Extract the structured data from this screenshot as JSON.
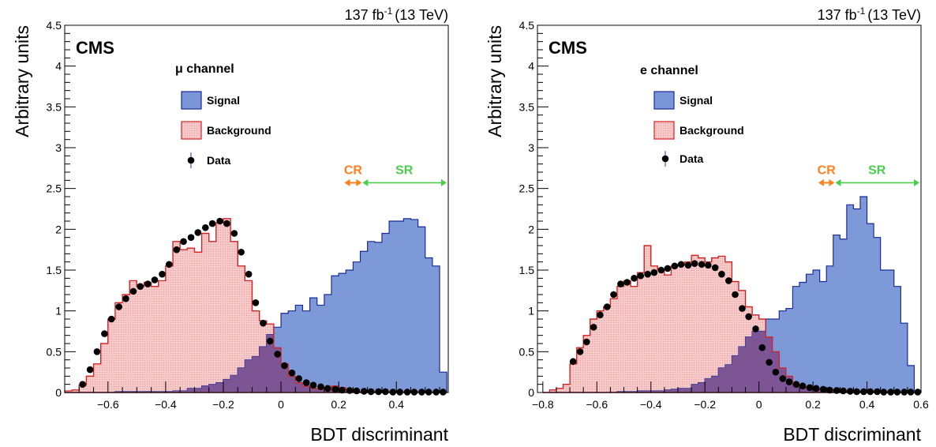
{
  "colors": {
    "signal_fill": "#7a96d6",
    "signal_line": "#1a2a9a",
    "background_fill": "#f6c8c8",
    "background_line": "#d42020",
    "overlap_fill": "#7d5494",
    "data": "#000000",
    "cr": "#ff7f1a",
    "sr": "#4ccc4c"
  },
  "chart_data": [
    {
      "type": "histogram",
      "experiment": "CMS",
      "channel": "μ channel",
      "lumi": "137 fb",
      "lumi_sup": "-1",
      "energy": "(13 TeV)",
      "xlabel": "BDT discriminant",
      "ylabel": "Arbitrary units",
      "xlim": [
        -0.75,
        0.58
      ],
      "ylim": [
        0,
        4.5
      ],
      "xticks": [
        -0.6,
        -0.4,
        -0.2,
        0,
        0.2,
        0.4
      ],
      "xticklabels": [
        "−0.6",
        "−0.4",
        "−0.2",
        "0",
        "0.2",
        "0.4"
      ],
      "yticks": [
        0,
        0.5,
        1,
        1.5,
        2,
        2.5,
        3,
        3.5,
        4,
        4.5
      ],
      "yticklabels": [
        "0",
        "0.5",
        "1",
        "1.5",
        "2",
        "2.5",
        "3",
        "3.5",
        "4",
        "4.5"
      ],
      "legend": [
        "Signal",
        "Background",
        "Data"
      ],
      "regions": {
        "CR": {
          "label": "CR",
          "range": [
            0.22,
            0.28
          ],
          "y": 2.57
        },
        "SR": {
          "label": "SR",
          "range": [
            0.28,
            0.58
          ],
          "y": 2.57
        }
      },
      "bin_edges": [
        -0.75,
        -0.725,
        -0.7,
        -0.675,
        -0.65,
        -0.625,
        -0.6,
        -0.575,
        -0.55,
        -0.525,
        -0.5,
        -0.475,
        -0.45,
        -0.425,
        -0.4,
        -0.375,
        -0.35,
        -0.325,
        -0.3,
        -0.275,
        -0.25,
        -0.225,
        -0.2,
        -0.175,
        -0.15,
        -0.125,
        -0.1,
        -0.075,
        -0.05,
        -0.025,
        0,
        0.025,
        0.05,
        0.075,
        0.1,
        0.125,
        0.15,
        0.175,
        0.2,
        0.225,
        0.25,
        0.275,
        0.3,
        0.325,
        0.35,
        0.375,
        0.4,
        0.425,
        0.45,
        0.475,
        0.5,
        0.525,
        0.55,
        0.575
      ],
      "background": [
        0.02,
        0.03,
        0.09,
        0.2,
        0.35,
        0.6,
        0.9,
        1.1,
        1.2,
        1.37,
        1.3,
        1.35,
        1.3,
        1.37,
        1.55,
        1.85,
        1.75,
        1.77,
        1.72,
        1.95,
        1.85,
        2.08,
        2.13,
        1.85,
        1.55,
        1.37,
        1.0,
        0.88,
        0.84,
        0.55,
        0.35,
        0.2,
        0.12,
        0.08,
        0.05,
        0.04,
        0.03,
        0.08,
        0.06,
        0.02,
        0.01,
        0.01,
        0.01,
        0.01,
        0.01,
        0.01,
        0.01,
        0.01,
        0.01,
        0.0,
        0.0,
        0.0,
        0.0
      ],
      "signal": [
        0.0,
        0.0,
        0.0,
        0.0,
        0.0,
        0.0,
        0.0,
        0.01,
        0.01,
        0.01,
        0.01,
        0.01,
        0.01,
        0.01,
        0.01,
        0.02,
        0.02,
        0.05,
        0.05,
        0.08,
        0.1,
        0.12,
        0.16,
        0.21,
        0.3,
        0.4,
        0.44,
        0.56,
        0.71,
        0.8,
        0.97,
        1.0,
        1.07,
        1.0,
        1.16,
        1.07,
        1.2,
        1.43,
        1.46,
        1.5,
        1.6,
        1.73,
        1.85,
        1.84,
        1.95,
        2.1,
        2.1,
        2.13,
        2.12,
        2.03,
        1.65,
        1.55,
        0.25
      ],
      "data_x": [
        -0.688,
        -0.662,
        -0.638,
        -0.612,
        -0.588,
        -0.562,
        -0.538,
        -0.512,
        -0.488,
        -0.462,
        -0.438,
        -0.412,
        -0.388,
        -0.362,
        -0.338,
        -0.312,
        -0.288,
        -0.262,
        -0.238,
        -0.212,
        -0.188,
        -0.162,
        -0.138,
        -0.112,
        -0.088,
        -0.062,
        -0.038,
        -0.012,
        0.012,
        0.038,
        0.062,
        0.088,
        0.112,
        0.138,
        0.162,
        0.188,
        0.212,
        0.238,
        0.262,
        0.288,
        0.312,
        0.338,
        0.362,
        0.388,
        0.412,
        0.438,
        0.462,
        0.488,
        0.512,
        0.538,
        0.562
      ],
      "data_y": [
        0.1,
        0.28,
        0.5,
        0.72,
        0.9,
        1.05,
        1.15,
        1.24,
        1.3,
        1.33,
        1.38,
        1.45,
        1.57,
        1.75,
        1.85,
        1.9,
        1.96,
        2.02,
        2.07,
        2.1,
        2.07,
        1.95,
        1.72,
        1.45,
        1.1,
        0.85,
        0.63,
        0.47,
        0.33,
        0.24,
        0.17,
        0.12,
        0.09,
        0.07,
        0.05,
        0.04,
        0.03,
        0.025,
        0.02,
        0.015,
        0.01,
        0.01,
        0.01,
        0.005,
        0.005,
        0.005,
        0.005,
        0.005,
        0.005,
        0.005,
        0.005
      ]
    },
    {
      "type": "histogram",
      "experiment": "CMS",
      "channel": "e channel",
      "lumi": "137 fb",
      "lumi_sup": "-1",
      "energy": "(13 TeV)",
      "xlabel": "BDT discriminant",
      "ylabel": "Arbitrary units",
      "xlim": [
        -0.82,
        0.6
      ],
      "ylim": [
        0,
        4.5
      ],
      "xticks": [
        -0.8,
        -0.6,
        -0.4,
        -0.2,
        0,
        0.2,
        0.4,
        0.6
      ],
      "xticklabels": [
        "−0.8",
        "−0.6",
        "−0.4",
        "−0.2",
        "0",
        "0.2",
        "0.4",
        "0.6"
      ],
      "yticks": [
        0,
        0.5,
        1,
        1.5,
        2,
        2.5,
        3,
        3.5,
        4,
        4.5
      ],
      "yticklabels": [
        "0",
        "0.5",
        "1",
        "1.5",
        "2",
        "2.5",
        "3",
        "3.5",
        "4",
        "4.5"
      ],
      "legend": [
        "Signal",
        "Background",
        "Data"
      ],
      "regions": {
        "CR": {
          "label": "CR",
          "range": [
            0.22,
            0.28
          ],
          "y": 2.57
        },
        "SR": {
          "label": "SR",
          "range": [
            0.28,
            0.6
          ],
          "y": 2.57
        }
      },
      "bin_edges": [
        -0.8,
        -0.775,
        -0.75,
        -0.725,
        -0.7,
        -0.675,
        -0.65,
        -0.625,
        -0.6,
        -0.575,
        -0.55,
        -0.525,
        -0.5,
        -0.475,
        -0.45,
        -0.425,
        -0.4,
        -0.375,
        -0.35,
        -0.325,
        -0.3,
        -0.275,
        -0.25,
        -0.225,
        -0.2,
        -0.175,
        -0.15,
        -0.125,
        -0.1,
        -0.075,
        -0.05,
        -0.025,
        0,
        0.025,
        0.05,
        0.075,
        0.1,
        0.125,
        0.15,
        0.175,
        0.2,
        0.225,
        0.25,
        0.275,
        0.3,
        0.325,
        0.35,
        0.375,
        0.4,
        0.425,
        0.45,
        0.475,
        0.5,
        0.525,
        0.55,
        0.575,
        0.6
      ],
      "background": [
        0.0,
        0.03,
        0.05,
        0.1,
        0.35,
        0.55,
        0.7,
        0.9,
        1.0,
        1.05,
        1.15,
        1.3,
        1.37,
        1.3,
        1.47,
        1.8,
        1.55,
        1.5,
        1.44,
        1.55,
        1.57,
        1.6,
        1.68,
        1.65,
        1.6,
        1.65,
        1.67,
        1.6,
        1.36,
        1.25,
        1.05,
        0.95,
        0.9,
        0.68,
        0.5,
        0.3,
        0.2,
        0.1,
        0.07,
        0.05,
        0.04,
        0.03,
        0.03,
        0.02,
        0.02,
        0.01,
        0.01,
        0.01,
        0.01,
        0.01,
        0.01,
        0.01,
        0.0,
        0.0,
        0.0,
        0.0
      ],
      "signal": [
        0.0,
        0.0,
        0.0,
        0.0,
        0.0,
        0.0,
        0.0,
        0.0,
        0.0,
        0.0,
        0.0,
        0.01,
        0.01,
        0.01,
        0.02,
        0.02,
        0.02,
        0.02,
        0.03,
        0.04,
        0.05,
        0.05,
        0.1,
        0.12,
        0.17,
        0.2,
        0.3,
        0.34,
        0.45,
        0.56,
        0.68,
        0.75,
        0.75,
        0.9,
        0.9,
        1.0,
        1.03,
        1.3,
        1.35,
        1.45,
        1.5,
        1.36,
        1.55,
        1.93,
        1.88,
        2.3,
        2.25,
        2.4,
        2.07,
        1.9,
        1.5,
        1.5,
        1.3,
        0.85,
        0.33,
        0.02
      ],
      "data_x": [
        -0.688,
        -0.662,
        -0.638,
        -0.612,
        -0.588,
        -0.562,
        -0.538,
        -0.512,
        -0.488,
        -0.462,
        -0.438,
        -0.412,
        -0.388,
        -0.362,
        -0.338,
        -0.312,
        -0.288,
        -0.262,
        -0.238,
        -0.212,
        -0.188,
        -0.162,
        -0.138,
        -0.112,
        -0.088,
        -0.062,
        -0.038,
        -0.012,
        0.012,
        0.038,
        0.062,
        0.088,
        0.112,
        0.138,
        0.162,
        0.188,
        0.212,
        0.238,
        0.262,
        0.288,
        0.312,
        0.338,
        0.362,
        0.388,
        0.412,
        0.438,
        0.462,
        0.488,
        0.512,
        0.538,
        0.562,
        0.588
      ],
      "data_y": [
        0.38,
        0.5,
        0.62,
        0.8,
        0.95,
        1.05,
        1.2,
        1.33,
        1.35,
        1.4,
        1.43,
        1.45,
        1.47,
        1.5,
        1.52,
        1.55,
        1.57,
        1.56,
        1.58,
        1.57,
        1.56,
        1.53,
        1.45,
        1.37,
        1.2,
        1.03,
        0.93,
        0.78,
        0.55,
        0.37,
        0.25,
        0.17,
        0.13,
        0.1,
        0.08,
        0.06,
        0.05,
        0.04,
        0.03,
        0.025,
        0.02,
        0.015,
        0.01,
        0.01,
        0.01,
        0.01,
        0.005,
        0.005,
        0.005,
        0.005,
        0.005,
        0.005
      ]
    }
  ]
}
